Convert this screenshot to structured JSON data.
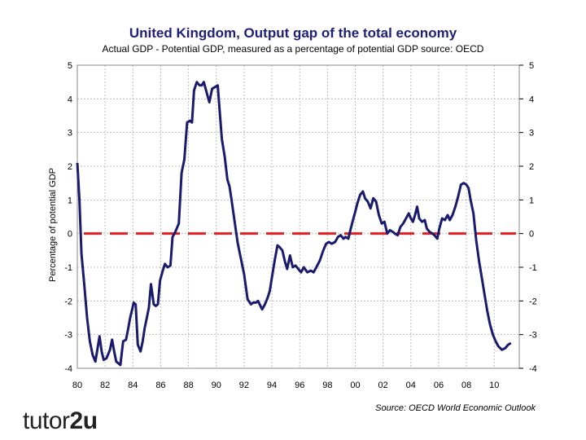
{
  "chart_data": {
    "type": "line",
    "title": "United Kingdom, Output gap of the total economy",
    "subtitle": "Actual GDP - Potential GDP, measured as a percentage of potential GDP source: OECD",
    "ylabel": "Percentage of potential GDP",
    "xlabel": "",
    "xlim": [
      1980,
      2011.8
    ],
    "ylim": [
      -4,
      5
    ],
    "x_ticks": [
      "80",
      "82",
      "84",
      "86",
      "88",
      "90",
      "92",
      "94",
      "96",
      "98",
      "00",
      "02",
      "04",
      "06",
      "08",
      "10"
    ],
    "y_ticks": [
      "5",
      "4",
      "3",
      "2",
      "1",
      "0",
      "-1",
      "-2",
      "-3",
      "-4"
    ],
    "grid": true,
    "reference_line": {
      "y": 0,
      "color": "#e02020",
      "style": "dashed"
    },
    "series": [
      {
        "name": "Output gap",
        "color": "#1a1a6e",
        "x": [
          1980.0,
          1980.15,
          1980.3,
          1980.5,
          1980.7,
          1980.9,
          1981.1,
          1981.3,
          1981.5,
          1981.6,
          1981.75,
          1981.9,
          1982.1,
          1982.35,
          1982.5,
          1982.65,
          1982.8,
          1982.95,
          1983.1,
          1983.3,
          1983.5,
          1983.65,
          1983.8,
          1983.95,
          1984.05,
          1984.2,
          1984.35,
          1984.55,
          1984.7,
          1984.85,
          1985.0,
          1985.15,
          1985.3,
          1985.5,
          1985.65,
          1985.8,
          1985.95,
          1986.15,
          1986.3,
          1986.5,
          1986.7,
          1986.85,
          1987.05,
          1987.3,
          1987.5,
          1987.7,
          1987.9,
          1988.1,
          1988.25,
          1988.4,
          1988.6,
          1988.8,
          1988.95,
          1989.1,
          1989.3,
          1989.5,
          1989.7,
          1989.9,
          1990.1,
          1990.4,
          1990.6,
          1990.8,
          1990.95,
          1991.1,
          1991.3,
          1991.55,
          1991.75,
          1992.0,
          1992.25,
          1992.5,
          1992.65,
          1992.85,
          1993.0,
          1993.3,
          1993.5,
          1993.7,
          1993.85,
          1994.0,
          1994.2,
          1994.4,
          1994.55,
          1994.75,
          1994.95,
          1995.1,
          1995.3,
          1995.5,
          1995.7,
          1995.9,
          1996.1,
          1996.3,
          1996.55,
          1996.8,
          1997.0,
          1997.2,
          1997.45,
          1997.7,
          1997.9,
          1998.1,
          1998.3,
          1998.55,
          1998.75,
          1998.95,
          1999.15,
          1999.3,
          1999.5,
          1999.65,
          1999.8,
          2000.0,
          2000.15,
          2000.35,
          2000.55,
          2000.7,
          2000.9,
          2001.1,
          2001.3,
          2001.5,
          2001.7,
          2001.9,
          2002.1,
          2002.3,
          2002.5,
          2002.7,
          2002.85,
          2003.05,
          2003.25,
          2003.45,
          2003.65,
          2003.85,
          2004.0,
          2004.15,
          2004.3,
          2004.45,
          2004.6,
          2004.8,
          2005.0,
          2005.15,
          2005.35,
          2005.55,
          2005.7,
          2005.9,
          2006.05,
          2006.25,
          2006.45,
          2006.65,
          2006.8,
          2007.0,
          2007.2,
          2007.4,
          2007.6,
          2007.8,
          2008.0,
          2008.15,
          2008.3,
          2008.5,
          2008.7,
          2008.9,
          2009.1,
          2009.3,
          2009.5,
          2009.7,
          2009.9,
          2010.1,
          2010.3,
          2010.55,
          2010.8,
          2011.0,
          2011.2
        ],
        "values": [
          2.1,
          1.0,
          -0.6,
          -1.5,
          -2.5,
          -3.2,
          -3.6,
          -3.8,
          -3.3,
          -3.05,
          -3.5,
          -3.75,
          -3.7,
          -3.45,
          -3.15,
          -3.5,
          -3.8,
          -3.85,
          -3.9,
          -3.2,
          -3.15,
          -2.85,
          -2.5,
          -2.25,
          -2.05,
          -2.1,
          -3.3,
          -3.5,
          -3.2,
          -2.8,
          -2.5,
          -2.2,
          -1.5,
          -2.1,
          -2.15,
          -2.1,
          -1.4,
          -1.1,
          -0.9,
          -1.0,
          -0.95,
          -0.1,
          0.05,
          0.3,
          1.8,
          2.2,
          3.3,
          3.35,
          3.3,
          4.25,
          4.5,
          4.4,
          4.4,
          4.5,
          4.2,
          3.9,
          4.3,
          4.35,
          4.4,
          2.8,
          2.3,
          1.6,
          1.4,
          1.0,
          0.4,
          -0.3,
          -0.7,
          -1.2,
          -1.95,
          -2.1,
          -2.05,
          -2.05,
          -2.0,
          -2.25,
          -2.1,
          -1.9,
          -1.7,
          -1.3,
          -0.8,
          -0.35,
          -0.4,
          -0.5,
          -0.85,
          -1.05,
          -0.65,
          -1.0,
          -0.95,
          -1.05,
          -1.15,
          -1.0,
          -1.15,
          -1.1,
          -1.15,
          -1.0,
          -0.8,
          -0.5,
          -0.3,
          -0.25,
          -0.3,
          -0.25,
          -0.1,
          -0.05,
          -0.15,
          -0.1,
          -0.15,
          0.1,
          0.35,
          0.65,
          0.9,
          1.15,
          1.25,
          1.05,
          0.95,
          0.75,
          1.05,
          0.95,
          0.55,
          0.3,
          0.35,
          0.0,
          0.1,
          0.05,
          0.0,
          -0.05,
          0.2,
          0.3,
          0.45,
          0.6,
          0.45,
          0.35,
          0.55,
          0.8,
          0.45,
          0.35,
          0.4,
          0.15,
          0.05,
          0.0,
          -0.05,
          -0.15,
          0.15,
          0.45,
          0.4,
          0.55,
          0.4,
          0.55,
          0.8,
          1.1,
          1.45,
          1.5,
          1.45,
          1.35,
          1.0,
          0.6,
          -0.2,
          -0.8,
          -1.3,
          -1.8,
          -2.3,
          -2.7,
          -3.0,
          -3.2,
          -3.35,
          -3.45,
          -3.4,
          -3.3,
          -3.25
        ]
      }
    ]
  },
  "source_text": "Source: OECD World Economic Outlook",
  "logo": {
    "part1": "tutor",
    "part2": "2u"
  }
}
